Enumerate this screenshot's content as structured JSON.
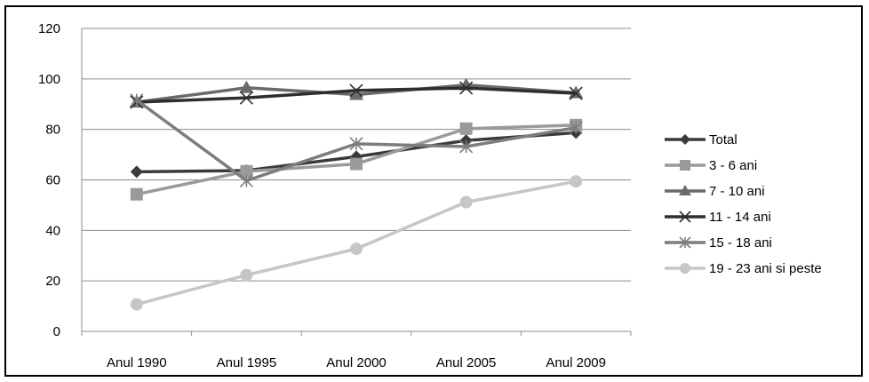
{
  "chart_data": {
    "type": "line",
    "title": "",
    "xlabel": "",
    "ylabel": "",
    "categories": [
      "Anul 1990",
      "Anul 1995",
      "Anul 2000",
      "Anul 2005",
      "Anul 2009"
    ],
    "ylim": [
      0,
      120
    ],
    "yticks": [
      0,
      20,
      40,
      60,
      80,
      100,
      120
    ],
    "grid": true,
    "legend_position": "right",
    "series": [
      {
        "name": "Total",
        "values": [
          63.2,
          63.7,
          69.2,
          75.6,
          78.7
        ],
        "color": "#3a3a3a",
        "marker": "diamond"
      },
      {
        "name": "3 - 6 ani",
        "values": [
          54.3,
          63.4,
          66.3,
          80.3,
          81.7
        ],
        "color": "#9a9a9a",
        "marker": "square"
      },
      {
        "name": "7 - 10 ani",
        "values": [
          90.8,
          96.5,
          93.8,
          97.6,
          94.5
        ],
        "color": "#6a6a6a",
        "marker": "triangle"
      },
      {
        "name": "11 - 14 ani",
        "values": [
          90.8,
          92.5,
          95.4,
          96.4,
          94.3
        ],
        "color": "#2e2e2e",
        "marker": "x"
      },
      {
        "name": "15 - 18 ani",
        "values": [
          91.6,
          59.7,
          74.3,
          73.2,
          80.7
        ],
        "color": "#7d7d7d",
        "marker": "star"
      },
      {
        "name": "19 - 23 ani si peste",
        "values": [
          10.7,
          22.3,
          32.7,
          51.2,
          59.4
        ],
        "color": "#c6c6c6",
        "marker": "circle"
      }
    ]
  }
}
